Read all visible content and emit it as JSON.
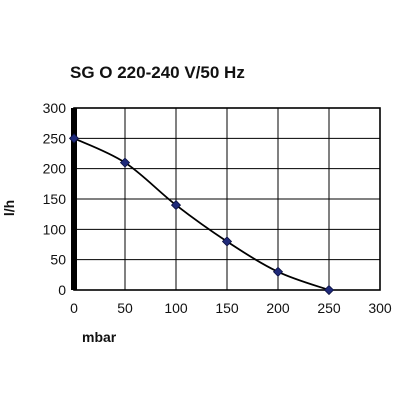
{
  "chart_data": {
    "type": "line",
    "title": "SG O 220-240 V/50 Hz",
    "xlabel": "mbar",
    "ylabel": "l/h",
    "xlim": [
      0,
      300
    ],
    "ylim": [
      0,
      300
    ],
    "x_ticks": [
      0,
      50,
      100,
      150,
      200,
      250,
      300
    ],
    "y_ticks": [
      0,
      50,
      100,
      150,
      200,
      250,
      300
    ],
    "grid": true,
    "legend": "none",
    "series": [
      {
        "color": "#000000",
        "marker_color": "#1f2a7a",
        "marker": "diamond",
        "x": [
          0,
          50,
          100,
          150,
          200,
          250
        ],
        "y": [
          250,
          210,
          140,
          80,
          30,
          0
        ]
      }
    ]
  }
}
